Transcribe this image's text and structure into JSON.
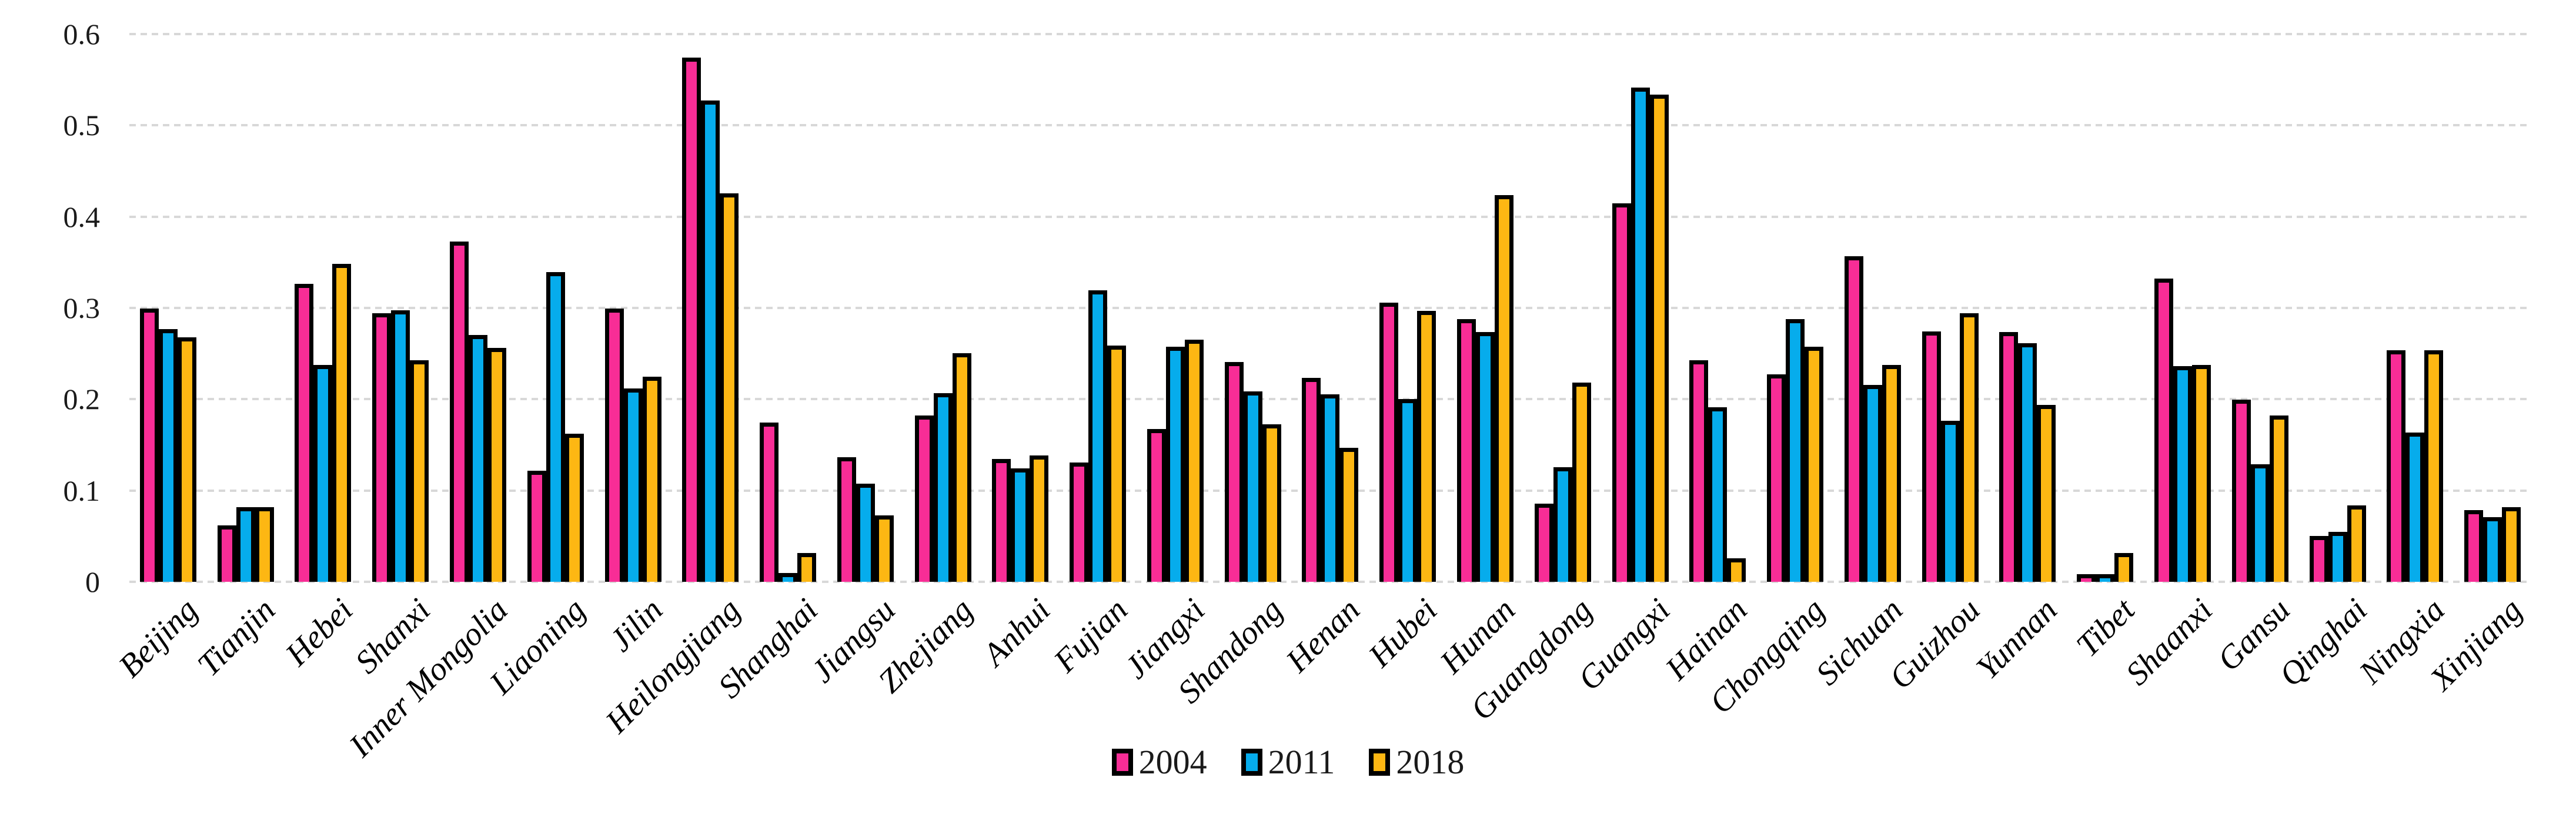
{
  "chart_data": {
    "type": "bar",
    "title": "",
    "xlabel": "",
    "ylabel": "",
    "categories": [
      "Beijing",
      "Tianjin",
      "Hebei",
      "Shanxi",
      "Inner Mongolia",
      "Liaoning",
      "Jilin",
      "Heilongjiang",
      "Shanghai",
      "Jiangsu",
      "Zhejiang",
      "Anhui",
      "Fujian",
      "Jiangxi",
      "Shandong",
      "Henan",
      "Hubei",
      "Hunan",
      "Guangdong",
      "Guangxi",
      "Hainan",
      "Chongqing",
      "Sichuan",
      "Guizhou",
      "Yunnan",
      "Tibet",
      "Shaanxi",
      "Gansu",
      "Qinghai",
      "Ningxia",
      "Xinjiang"
    ],
    "series": [
      {
        "name": "2004",
        "color": "#F82D96",
        "values": [
          0.295,
          0.057,
          0.322,
          0.29,
          0.368,
          0.117,
          0.295,
          0.57,
          0.17,
          0.132,
          0.178,
          0.13,
          0.126,
          0.163,
          0.236,
          0.219,
          0.301,
          0.283,
          0.081,
          0.41,
          0.238,
          0.223,
          0.352,
          0.27,
          0.269,
          0.004,
          0.328,
          0.195,
          0.046,
          0.249,
          0.074
        ]
      },
      {
        "name": "2011",
        "color": "#06ACEC",
        "values": [
          0.272,
          0.077,
          0.233,
          0.293,
          0.266,
          0.335,
          0.207,
          0.523,
          0.005,
          0.103,
          0.202,
          0.12,
          0.315,
          0.253,
          0.204,
          0.201,
          0.196,
          0.269,
          0.121,
          0.537,
          0.187,
          0.283,
          0.211,
          0.172,
          0.257,
          0.004,
          0.232,
          0.124,
          0.05,
          0.159,
          0.066
        ]
      },
      {
        "name": "2018",
        "color": "#FDB713",
        "values": [
          0.263,
          0.077,
          0.344,
          0.238,
          0.252,
          0.158,
          0.22,
          0.421,
          0.027,
          0.068,
          0.246,
          0.134,
          0.254,
          0.261,
          0.168,
          0.142,
          0.292,
          0.419,
          0.214,
          0.529,
          0.021,
          0.253,
          0.233,
          0.29,
          0.189,
          0.027,
          0.233,
          0.178,
          0.079,
          0.249,
          0.077
        ]
      }
    ],
    "ylim": [
      0,
      0.6
    ],
    "yticks": [
      0,
      0.1,
      0.2,
      0.3,
      0.4,
      0.5,
      0.6
    ],
    "ytick_labels": [
      "0",
      "0.1",
      "0.2",
      "0.3",
      "0.4",
      "0.5",
      "0.6"
    ],
    "grid": "horizontal-dashed",
    "gridline_color": "#D8D8D8",
    "bar_outline_color": "#000000",
    "legend_position": "bottom-center",
    "x_label_rotation_deg": 45
  }
}
